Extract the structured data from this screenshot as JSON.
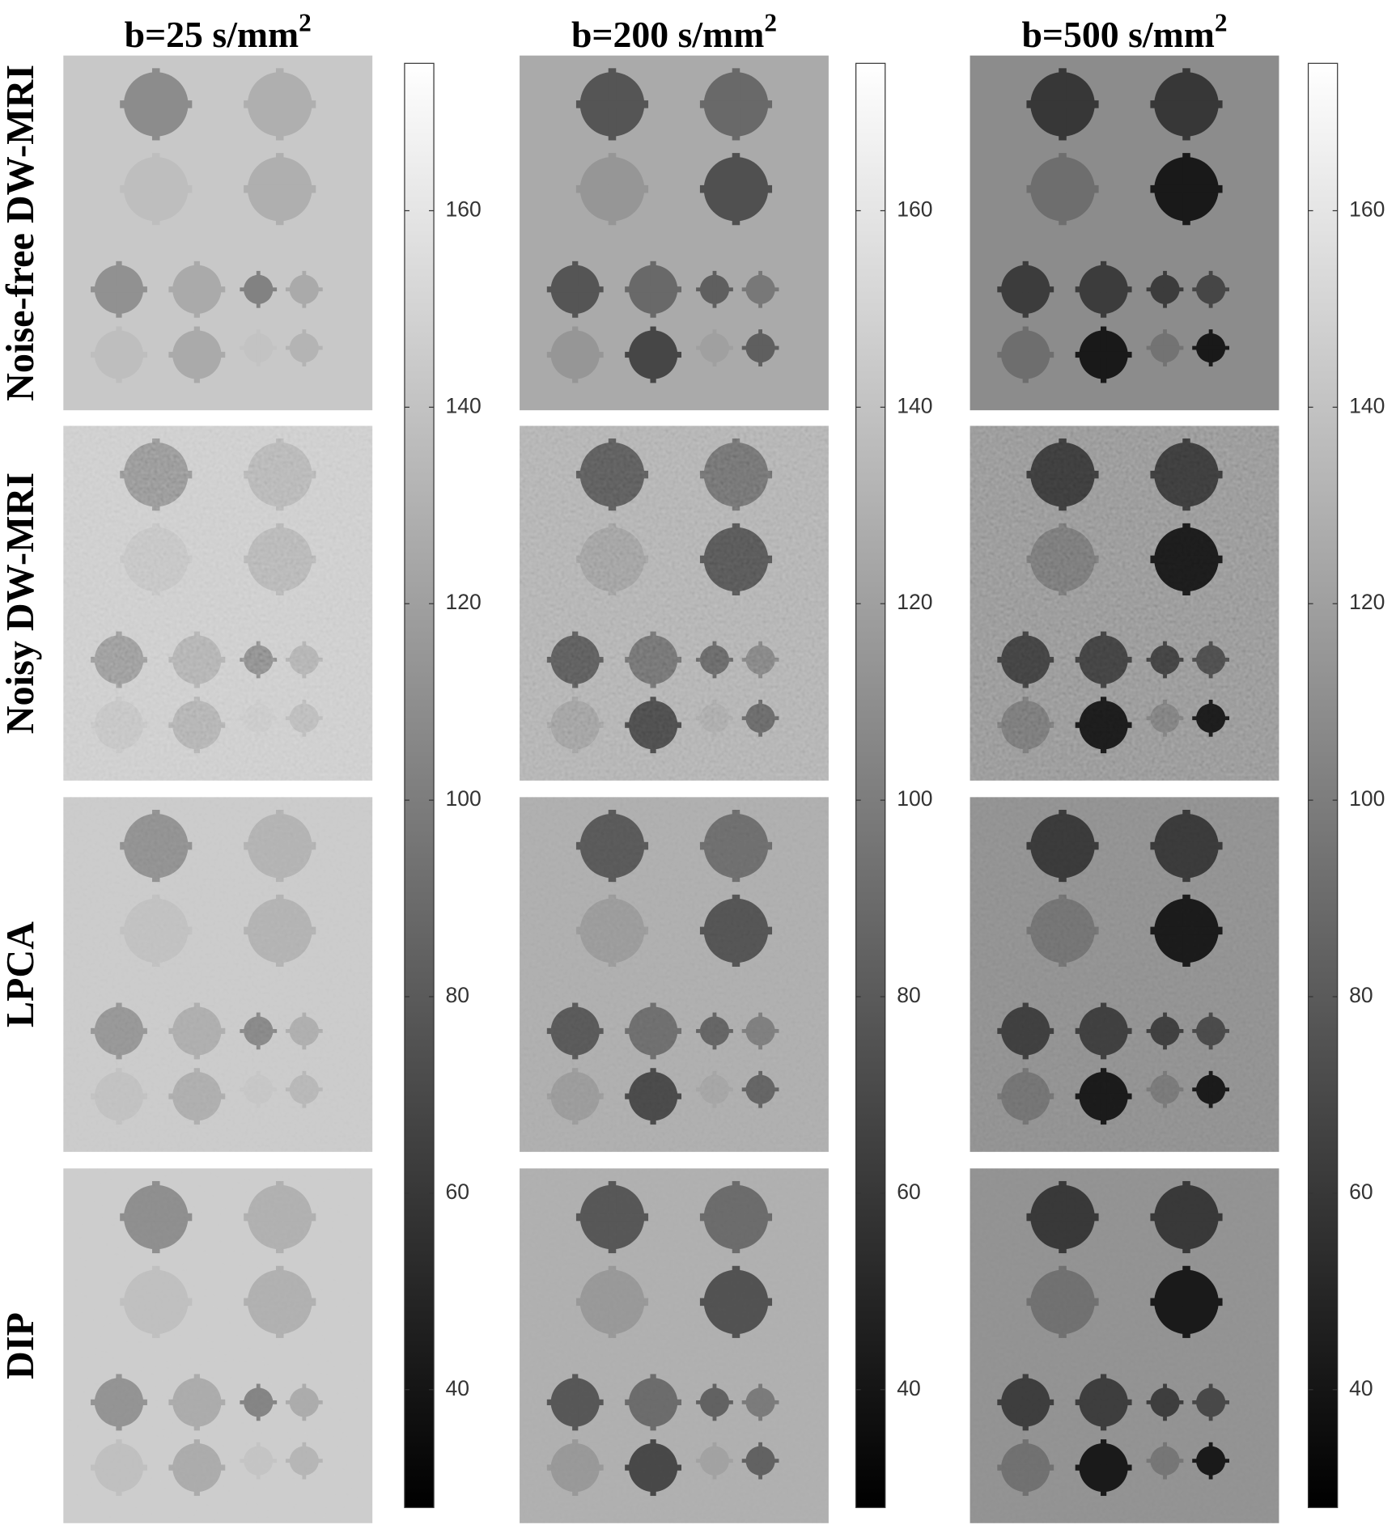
{
  "columns": [
    {
      "title": "b=25 s/mm",
      "sup": "2"
    },
    {
      "title": "b=200 s/mm",
      "sup": "2"
    },
    {
      "title": "b=500 s/mm",
      "sup": "2"
    }
  ],
  "rows": [
    "Noise-free DW-MRI",
    "Noisy DW-MRI",
    "LPCA",
    "DIP"
  ],
  "colorbars": [
    {
      "range": [
        28,
        175
      ],
      "ticks": [
        40,
        60,
        80,
        100,
        120,
        140,
        160
      ]
    },
    {
      "range": [
        28,
        175
      ],
      "ticks": [
        40,
        60,
        80,
        100,
        120,
        140,
        160
      ]
    },
    {
      "range": [
        28,
        175
      ],
      "ticks": [
        40,
        60,
        80,
        100,
        120,
        140,
        160
      ]
    }
  ]
}
